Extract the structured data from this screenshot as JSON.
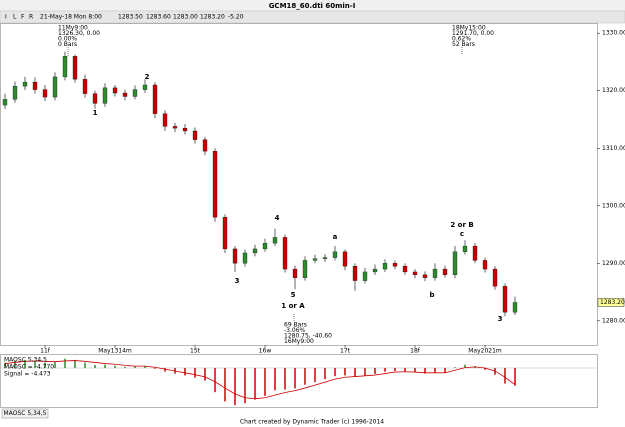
{
  "window_title": "GCM18_60.dti 60min-I",
  "toolbar": [
    "I",
    "L",
    "F",
    "R"
  ],
  "header": [
    "21-May-18 Mon 8:00",
    "1283.50",
    "1283.60",
    "1283.00",
    "1283.20",
    "-5.20"
  ],
  "chart_data": {
    "type": "candlestick",
    "categories": [
      null,
      null,
      null,
      null,
      "11f",
      null,
      null,
      null,
      null,
      null,
      null,
      "May1314m",
      null,
      null,
      null,
      null,
      null,
      null,
      null,
      "15t",
      null,
      null,
      null,
      null,
      null,
      null,
      "16w",
      null,
      null,
      null,
      null,
      null,
      null,
      null,
      "17t",
      null,
      null,
      null,
      null,
      null,
      null,
      "18f",
      null,
      null,
      null,
      null,
      null,
      null,
      "May2021m",
      null,
      null,
      null
    ],
    "open": [
      1317.5,
      1318.5,
      1320.8,
      1321.5,
      1320.2,
      1318.9,
      1322.4,
      1326.0,
      1322.0,
      1319.5,
      1317.8,
      1320.5,
      1319.6,
      1319.0,
      1320.2,
      1321.0,
      1316.0,
      1313.8,
      1313.5,
      1313.0,
      1311.5,
      1309.5,
      1298.0,
      1292.5,
      1290.0,
      1291.8,
      1292.5,
      1293.5,
      1294.5,
      1289.0,
      1287.5,
      1290.5,
      1290.8,
      1291.0,
      1292.0,
      1289.5,
      1287.0,
      1288.5,
      1289.0,
      1290.0,
      1289.5,
      1288.5,
      1288.0,
      1287.5,
      1289.0,
      1288.0,
      1292.0,
      1293.0,
      1290.5,
      1289.0,
      1286.0,
      1281.5
    ],
    "high": [
      1319.5,
      1321.6,
      1322.4,
      1322.3,
      1321.0,
      1323.2,
      1326.8,
      1326.3,
      1322.8,
      1320.0,
      1321.3,
      1321.0,
      1320.2,
      1320.9,
      1322.0,
      1321.5,
      1316.6,
      1314.4,
      1314.2,
      1313.6,
      1312.0,
      1310.0,
      1298.5,
      1293.0,
      1292.4,
      1293.2,
      1294.3,
      1296.0,
      1295.0,
      1289.6,
      1291.2,
      1291.5,
      1291.6,
      1293.0,
      1292.4,
      1290.0,
      1289.2,
      1289.8,
      1290.7,
      1290.5,
      1290.0,
      1289.0,
      1288.6,
      1290.0,
      1289.6,
      1293.0,
      1294.0,
      1293.5,
      1291.0,
      1289.5,
      1286.5,
      1284.2
    ],
    "low": [
      1316.8,
      1317.9,
      1320.1,
      1319.5,
      1318.2,
      1318.3,
      1321.8,
      1321.4,
      1318.8,
      1316.9,
      1317.2,
      1319.0,
      1318.3,
      1318.5,
      1319.6,
      1315.2,
      1313.0,
      1312.8,
      1312.4,
      1310.8,
      1308.8,
      1297.2,
      1291.8,
      1288.5,
      1289.4,
      1291.2,
      1292.0,
      1293.0,
      1288.4,
      1285.5,
      1287.0,
      1290.0,
      1290.2,
      1290.5,
      1288.8,
      1285.2,
      1286.5,
      1288.0,
      1288.5,
      1289.0,
      1288.0,
      1287.4,
      1286.9,
      1287.0,
      1287.5,
      1287.4,
      1291.5,
      1290.0,
      1288.4,
      1285.4,
      1280.8,
      1281.0
    ],
    "close": [
      1318.5,
      1320.8,
      1321.5,
      1320.2,
      1318.9,
      1322.4,
      1326.0,
      1322.0,
      1319.5,
      1317.8,
      1320.5,
      1319.6,
      1319.0,
      1320.2,
      1321.0,
      1316.0,
      1313.8,
      1313.5,
      1313.0,
      1311.5,
      1309.5,
      1298.0,
      1292.5,
      1290.0,
      1291.8,
      1292.5,
      1293.5,
      1294.5,
      1289.0,
      1287.5,
      1290.5,
      1290.8,
      1291.0,
      1292.0,
      1289.5,
      1287.0,
      1288.5,
      1289.0,
      1290.0,
      1289.5,
      1288.5,
      1288.0,
      1287.5,
      1289.0,
      1288.0,
      1292.0,
      1293.0,
      1290.5,
      1289.0,
      1286.0,
      1281.5,
      1283.2
    ],
    "up_color": "#2e8b2e",
    "down_color": "#cc0000",
    "ylim": [
      1275.8,
      1331.6
    ],
    "yticks": [
      {
        "value": 1280,
        "label": "1280.00"
      },
      {
        "value": 1290,
        "label": "1290.00"
      },
      {
        "value": 1300,
        "label": "1300.00"
      },
      {
        "value": 1310,
        "label": "1310.00"
      },
      {
        "value": 1320,
        "label": "1320.00"
      },
      {
        "value": 1330,
        "label": "1330.00"
      }
    ],
    "annotations": [
      "1",
      "2",
      "3",
      "4",
      "5",
      "1 or A",
      "a",
      "b",
      "2 or B",
      "c",
      "3"
    ],
    "notes": [
      [
        "11My9:00",
        "1326.30, 0.00",
        "0.00%",
        "0 Bars"
      ],
      [
        "18My15:00",
        "1291.70, 0.00",
        "0.62%",
        "52 Bars"
      ],
      [
        "69 Bars",
        "-3.06%",
        "1280.75, -40.60",
        "16My9:00"
      ]
    ],
    "indicator": {
      "title": "MAOSC 5,34,5",
      "readouts": [
        "MAOSC = -4.770",
        "Signal = -4.473"
      ],
      "tab": "MAOSC 5,34,5",
      "ylim": [
        -10.5,
        3.5
      ],
      "series": [
        {
          "name": "MAOSC",
          "values": [
            1.5,
            2.0,
            2.2,
            2.0,
            1.5,
            1.6,
            2.5,
            2.2,
            1.5,
            0.8,
            0.9,
            0.6,
            0.3,
            0.4,
            0.6,
            -0.2,
            -1.0,
            -1.5,
            -2.0,
            -2.6,
            -3.4,
            -6.5,
            -9.0,
            -10.0,
            -9.5,
            -8.5,
            -7.5,
            -6.0,
            -5.8,
            -5.5,
            -4.5,
            -3.8,
            -3.0,
            -2.2,
            -2.0,
            -2.3,
            -2.0,
            -1.6,
            -1.0,
            -0.8,
            -0.9,
            -1.2,
            -1.5,
            -1.2,
            -1.3,
            0.2,
            0.9,
            0.5,
            -0.5,
            -1.8,
            -4.2,
            -4.77
          ]
        },
        {
          "name": "Signal",
          "color": "#cc0000",
          "values": [
            1.2,
            1.5,
            1.8,
            1.9,
            1.8,
            1.7,
            1.9,
            2.0,
            1.8,
            1.5,
            1.2,
            1.0,
            0.7,
            0.5,
            0.5,
            0.2,
            -0.3,
            -0.8,
            -1.3,
            -1.8,
            -2.4,
            -3.7,
            -5.4,
            -7.0,
            -8.0,
            -8.3,
            -8.0,
            -7.3,
            -6.6,
            -6.1,
            -5.4,
            -4.6,
            -3.8,
            -3.0,
            -2.5,
            -2.3,
            -2.1,
            -1.9,
            -1.5,
            -1.1,
            -1.0,
            -1.1,
            -1.3,
            -1.3,
            -1.3,
            -0.6,
            0.1,
            0.3,
            0.0,
            -0.8,
            -2.5,
            -4.473
          ]
        }
      ]
    },
    "footer": "Chart created by Dynamic Trader  (c) 1996-2014"
  }
}
